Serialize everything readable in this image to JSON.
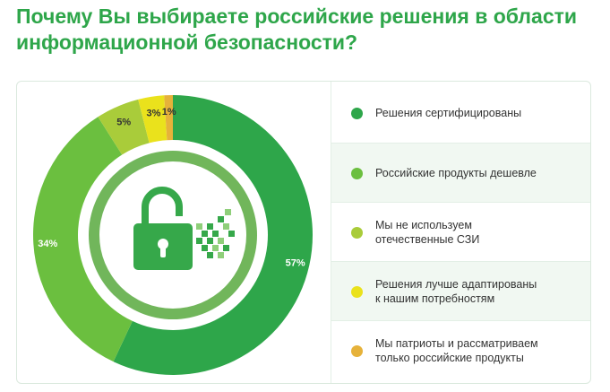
{
  "title": "Почему Вы выбираете российские решения в области информационной безопасности?",
  "chart_data": {
    "type": "pie",
    "categories": [
      "Решения сертифицированы",
      "Российские продукты дешевле",
      "Мы не используем\nотечественные СЗИ",
      "Решения лучше адаптированы\nк нашим потребностям",
      "Мы патриоты и рассматриваем\nтолько российские продукты"
    ],
    "values": [
      57,
      34,
      5,
      3,
      1
    ],
    "value_labels": [
      "57%",
      "34%",
      "5%",
      "3%",
      "1%"
    ],
    "colors": [
      "#2ea64a",
      "#6bbf3f",
      "#a9cc3a",
      "#eae21c",
      "#e6b23a"
    ],
    "label_colors": [
      "#ffffff",
      "#ffffff",
      "#333333",
      "#333333",
      "#333333"
    ],
    "legend_position": "right",
    "style": "donut"
  },
  "icons": {
    "center": "open-padlock-icon"
  }
}
